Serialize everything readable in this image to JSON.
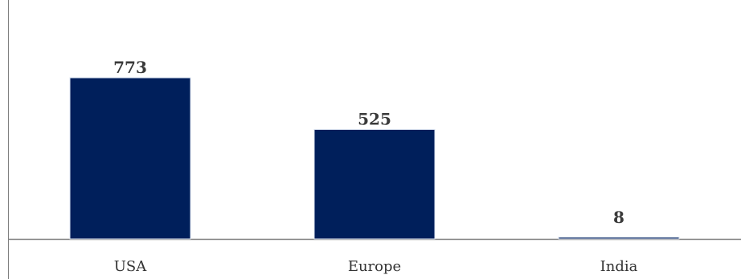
{
  "chart_data": {
    "type": "bar",
    "categories": [
      "USA",
      "Europe",
      "India"
    ],
    "values": [
      773,
      525,
      8
    ],
    "title": "",
    "xlabel": "",
    "ylabel": "",
    "ylim": [
      0,
      1000
    ],
    "grid": false,
    "legend": "none",
    "bar_color": "#001f5b",
    "axis_color": "#7f7f7f"
  }
}
